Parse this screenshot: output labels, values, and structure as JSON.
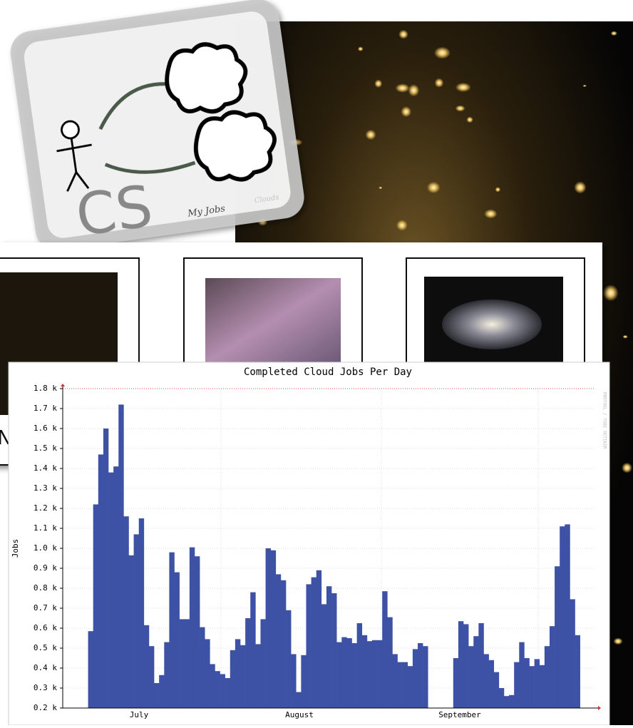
{
  "logo": {
    "letters": "CS",
    "caption": "My Jobs",
    "faint_caption": "Clouds"
  },
  "thumbnail_caption": "N",
  "chart_data": {
    "type": "bar",
    "title": "Completed Cloud Jobs Per Day",
    "y_label": "Jobs",
    "watermark": "RRDTOOL / TOBI OETIKER",
    "month_labels": [
      "July",
      "August",
      "September"
    ],
    "color": "#3d52a4",
    "values": [
      null,
      null,
      null,
      null,
      null,
      0.585,
      1.22,
      1.47,
      1.6,
      1.38,
      1.41,
      1.72,
      1.16,
      0.965,
      1.07,
      1.15,
      0.615,
      0.51,
      0.325,
      0.365,
      0.53,
      0.98,
      0.88,
      0.645,
      0.645,
      1.005,
      0.96,
      0.605,
      0.545,
      0.42,
      0.385,
      0.37,
      0.35,
      0.49,
      0.545,
      0.515,
      0.65,
      0.78,
      0.52,
      0.645,
      1.0,
      0.99,
      0.87,
      0.84,
      0.69,
      0.47,
      0.28,
      0.465,
      0.82,
      0.855,
      0.89,
      0.72,
      0.81,
      0.775,
      0.53,
      0.555,
      0.55,
      0.525,
      0.625,
      0.565,
      0.535,
      0.54,
      0.54,
      0.785,
      0.655,
      0.47,
      0.43,
      0.43,
      0.41,
      0.495,
      0.525,
      0.51,
      null,
      null,
      null,
      null,
      null,
      0.45,
      0.635,
      0.62,
      0.51,
      0.56,
      0.625,
      0.47,
      0.44,
      0.38,
      0.3,
      0.26,
      0.265,
      0.43,
      0.53,
      0.45,
      0.41,
      0.445,
      0.415,
      0.51,
      0.61,
      0.91,
      1.11,
      1.12,
      0.745,
      0.565,
      0.2,
      null,
      null
    ],
    "ylim": [
      0.2,
      1.8
    ],
    "yticks": [
      {
        "value": 0.2,
        "label": "0.2 k"
      },
      {
        "value": 0.3,
        "label": "0.3 k"
      },
      {
        "value": 0.4,
        "label": "0.4 k"
      },
      {
        "value": 0.5,
        "label": "0.5 k"
      },
      {
        "value": 0.6,
        "label": "0.6 k"
      },
      {
        "value": 0.7,
        "label": "0.7 k"
      },
      {
        "value": 0.8,
        "label": "0.8 k"
      },
      {
        "value": 0.9,
        "label": "0.9 k"
      },
      {
        "value": 1.0,
        "label": "1.0 k"
      },
      {
        "value": 1.1,
        "label": "1.1 k"
      },
      {
        "value": 1.2,
        "label": "1.2 k"
      },
      {
        "value": 1.3,
        "label": "1.3 k"
      },
      {
        "value": 1.4,
        "label": "1.4 k"
      },
      {
        "value": 1.5,
        "label": "1.5 k"
      },
      {
        "value": 1.6,
        "label": "1.6 k"
      },
      {
        "value": 1.7,
        "label": "1.7 k"
      },
      {
        "value": 1.8,
        "label": "1.8 k"
      }
    ],
    "grid": true
  }
}
